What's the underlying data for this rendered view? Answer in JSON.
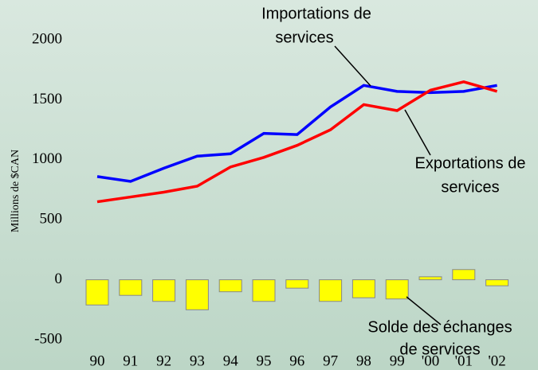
{
  "chart_data": {
    "type": "line_bar",
    "y_label": "Millions de $CAN",
    "categories": [
      "90",
      "91",
      "92",
      "93",
      "94",
      "95",
      "96",
      "97",
      "98",
      "99",
      "'00",
      "'01",
      "'02"
    ],
    "series": [
      {
        "name": "Importations de services",
        "color": "#0000ff",
        "kind": "line",
        "values": [
          860,
          820,
          930,
          1030,
          1050,
          1220,
          1210,
          1440,
          1620,
          1570,
          1560,
          1570,
          1620
        ]
      },
      {
        "name": "Exportations de services",
        "color": "#ff0000",
        "kind": "line",
        "values": [
          650,
          690,
          730,
          780,
          940,
          1020,
          1120,
          1250,
          1460,
          1410,
          1580,
          1650,
          1570
        ]
      },
      {
        "name": "Solde des échanges de services",
        "color": "#ffff00",
        "kind": "bar",
        "values": [
          -210,
          -130,
          -180,
          -250,
          -100,
          -180,
          -70,
          -180,
          -150,
          -160,
          25,
          85,
          -50
        ]
      }
    ],
    "annotations": [
      "Importations de",
      "services",
      "Exportations de",
      "services",
      "Solde des échanges",
      "de services"
    ],
    "ylim": [
      -500,
      2000
    ],
    "yticks": [
      -500,
      0,
      500,
      1000,
      1500,
      2000
    ]
  }
}
